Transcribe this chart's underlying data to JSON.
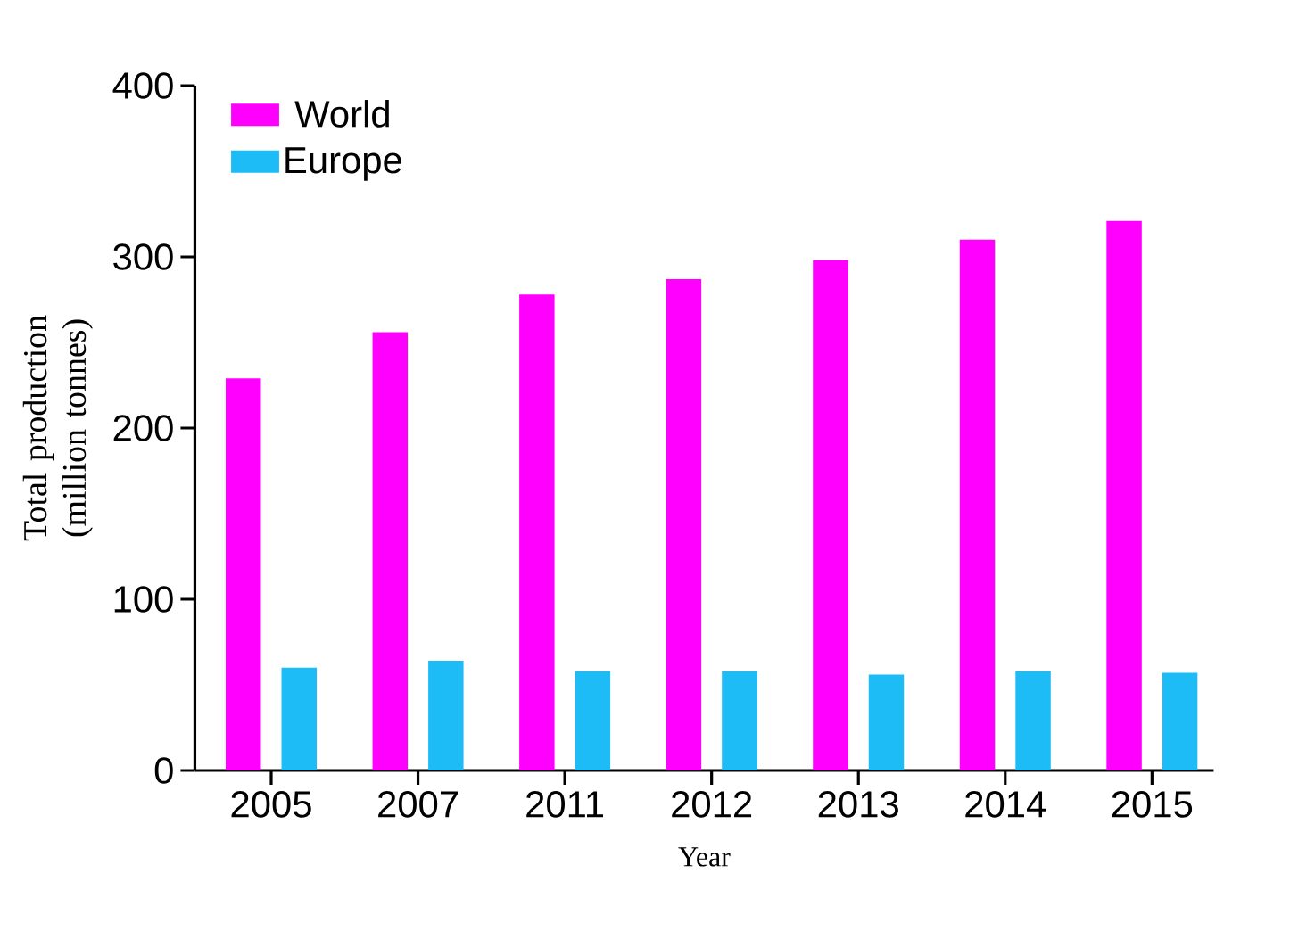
{
  "chart_data": {
    "type": "bar",
    "xlabel": "Year",
    "ylabel": "Total production (million tonnes)",
    "categories": [
      "2005",
      "2007",
      "2011",
      "2012",
      "2013",
      "2014",
      "2015"
    ],
    "series": [
      {
        "name": "World",
        "color": "#ff00ff",
        "values": [
          229,
          256,
          278,
          287,
          298,
          310,
          321
        ]
      },
      {
        "name": "Europe",
        "color": "#1ebcf7",
        "values": [
          60,
          64,
          58,
          58,
          56,
          58,
          57
        ]
      }
    ],
    "ylim": [
      0,
      400
    ],
    "yticks": [
      0,
      100,
      200,
      300,
      400
    ],
    "grid": false,
    "legend": "top left"
  }
}
